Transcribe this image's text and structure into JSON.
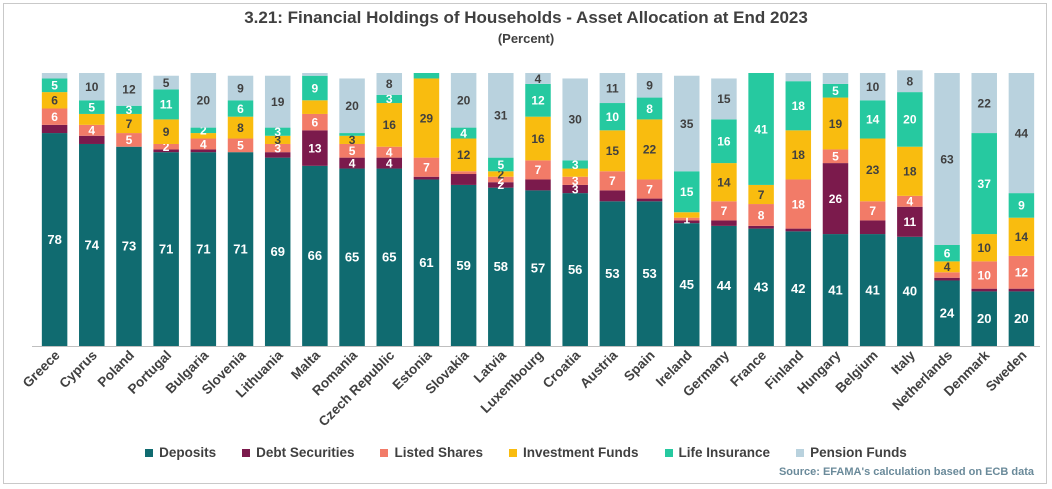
{
  "title": "3.21: Financial Holdings of Households - Asset Allocation at End 2023",
  "subtitle": "(Percent)",
  "source": "Source: EFAMA's calculation based on ECB data",
  "legend": [
    {
      "name": "Deposits",
      "color": "#106b70"
    },
    {
      "name": "Debt Securities",
      "color": "#7b1a4c"
    },
    {
      "name": "Listed Shares",
      "color": "#f27b68"
    },
    {
      "name": "Investment Funds",
      "color": "#f9bc0f"
    },
    {
      "name": "Life Insurance",
      "color": "#26c9a0"
    },
    {
      "name": "Pension Funds",
      "color": "#b9d2de"
    }
  ],
  "chart_data": {
    "type": "bar",
    "stacked": true,
    "ylim": [
      0,
      100
    ],
    "grid": false,
    "legend_position": "bottom",
    "categories": [
      "Greece",
      "Cyprus",
      "Poland",
      "Portugal",
      "Bulgaria",
      "Slovenia",
      "Lithuania",
      "Malta",
      "Romania",
      "Czech Republic",
      "Estonia",
      "Slovakia",
      "Latvia",
      "Luxembourg",
      "Croatia",
      "Austria",
      "Spain",
      "Ireland",
      "Germany",
      "France",
      "Finland",
      "Hungary",
      "Belgium",
      "Italy",
      "Netherlands",
      "Denmark",
      "Sweden"
    ],
    "series": [
      {
        "name": "Deposits",
        "values": [
          78,
          74,
          73,
          71,
          71,
          71,
          69,
          66,
          65,
          65,
          61,
          59,
          58,
          57,
          56,
          53,
          53,
          45,
          44,
          43,
          42,
          41,
          41,
          40,
          24,
          20,
          20
        ]
      },
      {
        "name": "Debt Securities",
        "values": [
          3,
          3,
          0,
          1,
          1,
          0,
          2,
          13,
          4,
          4,
          1,
          4,
          2,
          4,
          3,
          4,
          1,
          1,
          2,
          1,
          1,
          26,
          5,
          11,
          1,
          1,
          1
        ]
      },
      {
        "name": "Listed Shares",
        "values": [
          6,
          4,
          5,
          2,
          4,
          5,
          3,
          6,
          5,
          4,
          7,
          1,
          2,
          7,
          3,
          7,
          7,
          1,
          7,
          8,
          18,
          5,
          7,
          4,
          2,
          10,
          12
        ]
      },
      {
        "name": "Investment Funds",
        "values": [
          6,
          4,
          7,
          9,
          2,
          8,
          3,
          5,
          3,
          16,
          29,
          12,
          2,
          16,
          3,
          15,
          22,
          2,
          14,
          7,
          18,
          19,
          23,
          18,
          4,
          10,
          14
        ]
      },
      {
        "name": "Life Insurance",
        "values": [
          5,
          5,
          3,
          11,
          2,
          6,
          3,
          9,
          1,
          3,
          2,
          4,
          5,
          12,
          3,
          10,
          8,
          15,
          16,
          41,
          18,
          5,
          14,
          20,
          6,
          37,
          9
        ]
      },
      {
        "name": "Pension Funds",
        "values": [
          2,
          10,
          12,
          5,
          20,
          9,
          19,
          1,
          20,
          8,
          0,
          20,
          31,
          4,
          30,
          11,
          9,
          35,
          15,
          0,
          3,
          4,
          10,
          8,
          63,
          22,
          44
        ]
      }
    ],
    "data_labels": [
      [
        "78",
        "",
        "6",
        "6",
        "5",
        ""
      ],
      [
        "74",
        "",
        "4",
        "",
        "5",
        "10"
      ],
      [
        "73",
        "",
        "5",
        "7",
        "3",
        "12"
      ],
      [
        "71",
        "",
        "2",
        "9",
        "11",
        "5"
      ],
      [
        "71",
        "",
        "4",
        "",
        "2",
        "20"
      ],
      [
        "71",
        "",
        "5",
        "8",
        "6",
        "9"
      ],
      [
        "69",
        "",
        "3",
        "3",
        "3",
        "19"
      ],
      [
        "66",
        "13",
        "6",
        "",
        "9",
        ""
      ],
      [
        "65",
        "4",
        "5",
        "3",
        "",
        "20"
      ],
      [
        "65",
        "4",
        "4",
        "16",
        "3",
        "8"
      ],
      [
        "61",
        "",
        "7",
        "29",
        "",
        ""
      ],
      [
        "59",
        "",
        "",
        "12",
        "4",
        "20"
      ],
      [
        "58",
        "2",
        "2",
        "2",
        "5",
        "31"
      ],
      [
        "57",
        "",
        "7",
        "16",
        "12",
        "4"
      ],
      [
        "56",
        "3",
        "3",
        "",
        "3",
        "30"
      ],
      [
        "53",
        "",
        "7",
        "15",
        "10",
        "11"
      ],
      [
        "53",
        "",
        "7",
        "22",
        "8",
        "9"
      ],
      [
        "45",
        "",
        "1",
        "",
        "15",
        "35"
      ],
      [
        "44",
        "",
        "7",
        "14",
        "16",
        "15"
      ],
      [
        "43",
        "",
        "8",
        "7",
        "41",
        ""
      ],
      [
        "42",
        "",
        "18",
        "18",
        "18",
        ""
      ],
      [
        "41",
        "26",
        "5",
        "19",
        "5",
        ""
      ],
      [
        "41",
        "",
        "7",
        "23",
        "14",
        "10"
      ],
      [
        "40",
        "11",
        "4",
        "18",
        "20",
        "8"
      ],
      [
        "24",
        "",
        "",
        "4",
        "6",
        "63"
      ],
      [
        "20",
        "",
        "10",
        "10",
        "37",
        "22"
      ],
      [
        "20",
        "",
        "12",
        "14",
        "9",
        "44"
      ]
    ]
  }
}
